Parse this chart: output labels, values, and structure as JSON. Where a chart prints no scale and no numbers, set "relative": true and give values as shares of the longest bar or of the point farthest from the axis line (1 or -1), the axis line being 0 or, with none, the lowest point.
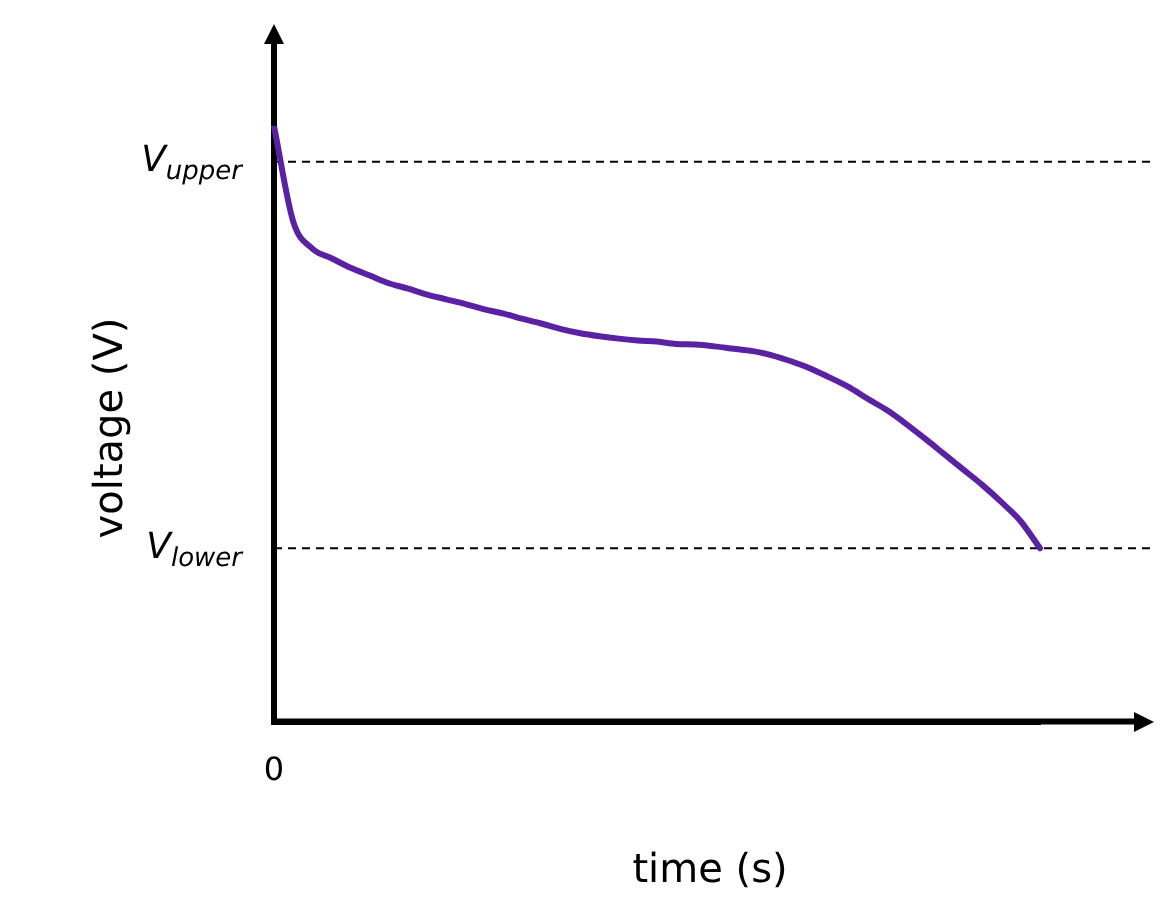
{
  "chart_data": {
    "type": "line",
    "xlabel": "time (s)",
    "ylabel": "voltage (V)",
    "relative": true,
    "marker": "none",
    "annotations": [
      "0"
    ],
    "categories": [
      null,
      null,
      null,
      null,
      null,
      null,
      null,
      null,
      null,
      null,
      null,
      null,
      null,
      null,
      null,
      null,
      null,
      null,
      null,
      null,
      null,
      null,
      null,
      null,
      null,
      null,
      null,
      null,
      null,
      null,
      null,
      null,
      null,
      null,
      null,
      null,
      null,
      null,
      null,
      null,
      null
    ],
    "series": [
      {
        "color": "#5a22a3",
        "values": [
          1.0,
          0.84,
          0.794,
          0.778,
          0.762,
          0.749,
          0.736,
          0.727,
          0.717,
          0.709,
          0.701,
          0.692,
          0.685,
          0.676,
          0.668,
          0.659,
          0.652,
          0.647,
          0.643,
          0.64,
          0.638,
          0.634,
          0.633,
          0.63,
          0.626,
          0.622,
          0.615,
          0.605,
          0.593,
          0.578,
          0.562,
          0.542,
          0.523,
          0.5,
          0.475,
          0.449,
          0.423,
          0.397,
          0.368,
          0.336,
          0.291
        ]
      }
    ],
    "ref_lines": [
      {
        "axis": "y",
        "value": 0.94,
        "label": "V$_{upper}$",
        "line_style": "dashed",
        "color": "#000000"
      },
      {
        "axis": "y",
        "value": 0.291,
        "label": "V$_{lower}$",
        "line_style": "dashed",
        "color": "#000000"
      }
    ]
  }
}
